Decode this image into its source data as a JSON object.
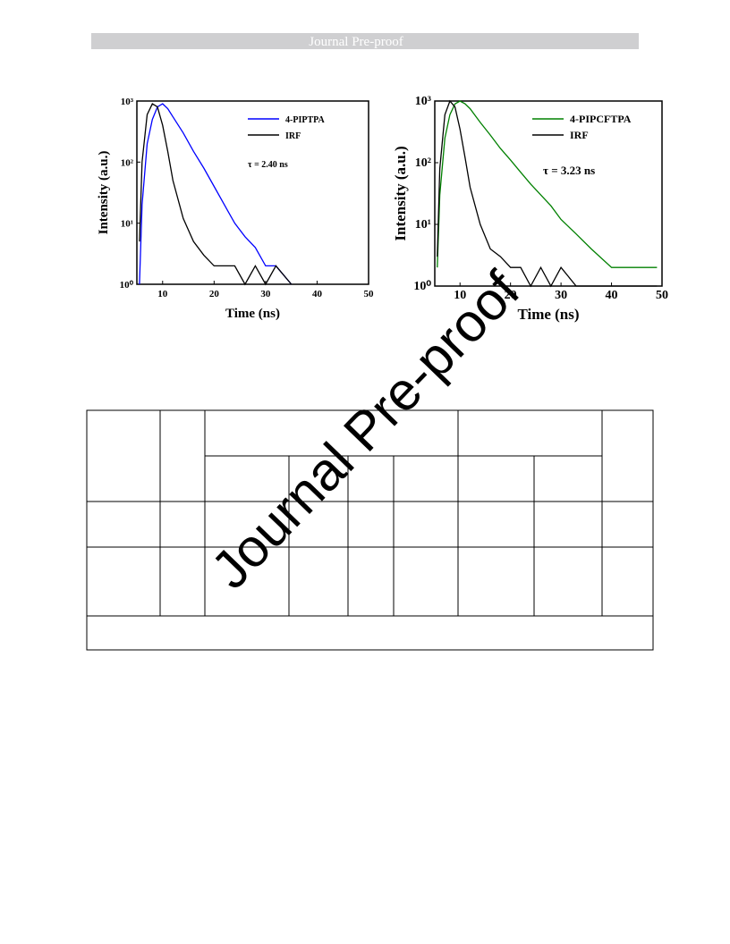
{
  "header": "Journal Pre-proof",
  "watermark": "Journal Pre-proof",
  "chart_data": [
    {
      "type": "line",
      "xlabel": "Time (ns)",
      "ylabel": "Intensity (a.u.)",
      "annotation": "τ = 2.40 ns",
      "log_scale": true,
      "legend": "upper right",
      "x": [
        5.5,
        6,
        7,
        8,
        9,
        10,
        11,
        12,
        14,
        16,
        18,
        20,
        22,
        24,
        26,
        28,
        30,
        32,
        35
      ],
      "series": [
        {
          "name": "4-PIPTPA",
          "color": "#0000ff",
          "values": [
            1,
            20,
            200,
            500,
            800,
            900,
            750,
            550,
            300,
            150,
            80,
            40,
            20,
            10,
            6,
            4,
            2,
            2,
            1
          ]
        },
        {
          "name": "IRF",
          "color": "#000000",
          "values": [
            5,
            100,
            600,
            900,
            800,
            400,
            150,
            50,
            12,
            5,
            3,
            2,
            2,
            2,
            1,
            2,
            1,
            2,
            1
          ]
        }
      ],
      "xlim": [
        5,
        50
      ],
      "xticks": [
        10,
        20,
        30,
        40,
        50
      ],
      "ylim": [
        1,
        1000
      ],
      "yticks": [
        {
          "value": 1,
          "label": "10⁰"
        },
        {
          "value": 10,
          "label": "10¹"
        },
        {
          "value": 100,
          "label": "10²"
        },
        {
          "value": 1000,
          "label": "10³"
        }
      ]
    },
    {
      "type": "line",
      "xlabel": "Time (ns)",
      "ylabel": "Intensity (a.u.)",
      "annotation": "τ = 3.23 ns",
      "log_scale": true,
      "legend": "upper right",
      "x": [
        5.5,
        6,
        7,
        8,
        9,
        10,
        11,
        12,
        14,
        16,
        18,
        20,
        22,
        24,
        26,
        28,
        30,
        33,
        36,
        40,
        45,
        49
      ],
      "series": [
        {
          "name": "4-PIPCFTPA",
          "color": "#008000",
          "values": [
            2,
            30,
            250,
            600,
            900,
            1000,
            900,
            750,
            450,
            280,
            170,
            110,
            70,
            45,
            30,
            20,
            12,
            7,
            4,
            2,
            2,
            2
          ]
        },
        {
          "name": "IRF",
          "color": "#000000",
          "values": [
            3,
            80,
            600,
            1000,
            800,
            350,
            120,
            40,
            10,
            4,
            3,
            2,
            2,
            1,
            2,
            1,
            2,
            1,
            1,
            1,
            1,
            1
          ]
        }
      ],
      "xlim": [
        5,
        50
      ],
      "xticks": [
        10,
        20,
        30,
        40,
        50
      ],
      "ylim": [
        1,
        1000
      ],
      "yticks": [
        {
          "value": 1,
          "label": "10⁰"
        },
        {
          "value": 10,
          "label": "10¹"
        },
        {
          "value": 100,
          "label": "10²"
        },
        {
          "value": 1000,
          "label": "10³"
        }
      ]
    }
  ]
}
